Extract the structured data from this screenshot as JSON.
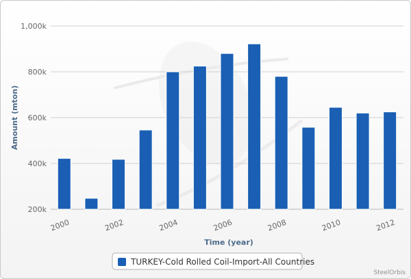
{
  "chart_data": {
    "type": "bar",
    "title": "",
    "xlabel": "Time (year)",
    "ylabel": "Amount (mton)",
    "categories": [
      "2000",
      "2001",
      "2002",
      "2003",
      "2004",
      "2005",
      "2006",
      "2007",
      "2008",
      "2009",
      "2010",
      "2011",
      "2012"
    ],
    "x_tick_labels": [
      "2000",
      "2002",
      "2004",
      "2006",
      "2008",
      "2010",
      "2012"
    ],
    "series": [
      {
        "name": "TURKEY-Cold Rolled Coil-Import-All Countries",
        "color": "#1a5fb4",
        "values": [
          422000,
          248000,
          418000,
          546000,
          800000,
          825000,
          880000,
          922000,
          780000,
          558000,
          645000,
          620000,
          625000
        ]
      }
    ],
    "ylim": [
      200000,
      1000000
    ],
    "y_ticks": [
      200000,
      400000,
      600000,
      800000,
      1000000
    ],
    "y_tick_labels": [
      "200k",
      "400k",
      "600k",
      "800k",
      "1,000k"
    ],
    "grid": true,
    "legend_position": "bottom-center"
  },
  "credit": "SteelOrbis"
}
